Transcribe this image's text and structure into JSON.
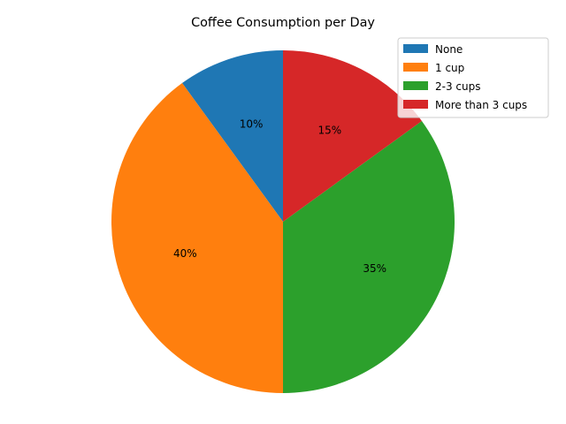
{
  "chart_data": {
    "type": "pie",
    "title": "Coffee Consumption per Day",
    "categories": [
      "None",
      "1 cup",
      "2-3 cups",
      "More than 3 cups"
    ],
    "values": [
      10,
      40,
      35,
      15
    ],
    "value_labels": [
      "10%",
      "40%",
      "35%",
      "15%"
    ],
    "colors": [
      "#1f77b4",
      "#ff7f0e",
      "#2ca02c",
      "#d62728"
    ],
    "start_angle_deg": 90,
    "direction": "counterclockwise",
    "legend_position": "top-right"
  }
}
